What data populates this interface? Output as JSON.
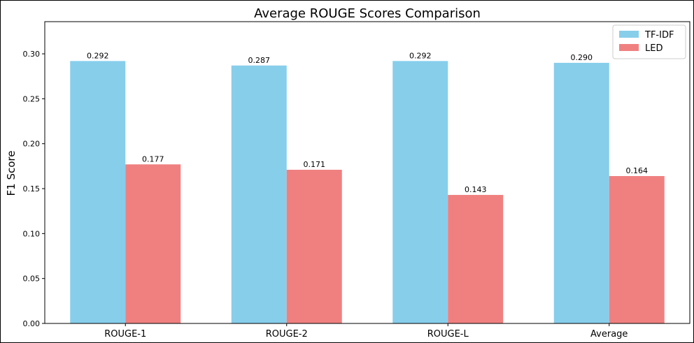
{
  "chart_data": {
    "type": "bar",
    "title": "Average ROUGE Scores Comparison",
    "xlabel": "",
    "ylabel": "F1 Score",
    "categories": [
      "ROUGE-1",
      "ROUGE-2",
      "ROUGE-L",
      "Average"
    ],
    "series": [
      {
        "name": "TF-IDF",
        "values": [
          0.292,
          0.287,
          0.292,
          0.29
        ],
        "color": "#87ceeb"
      },
      {
        "name": "LED",
        "values": [
          0.177,
          0.171,
          0.143,
          0.164
        ],
        "color": "#f08080"
      }
    ],
    "value_labels": [
      [
        "0.292",
        "0.287",
        "0.292",
        "0.290"
      ],
      [
        "0.177",
        "0.171",
        "0.143",
        "0.164"
      ]
    ],
    "yticks": [
      "0.00",
      "0.05",
      "0.10",
      "0.15",
      "0.20",
      "0.25",
      "0.30"
    ],
    "ylim": [
      0,
      0.3358
    ],
    "grid": false,
    "legend_position": "top-right"
  }
}
